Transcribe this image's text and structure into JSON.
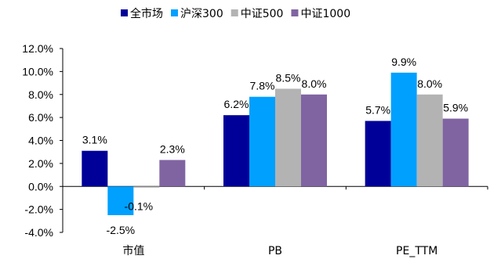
{
  "chart_data": {
    "type": "bar",
    "title": "",
    "xlabel": "",
    "ylabel": "",
    "categories": [
      "市值",
      "PB",
      "PE_TTM"
    ],
    "series": [
      {
        "name": "全市场",
        "color": "#000099",
        "values": [
          3.1,
          6.2,
          5.7
        ],
        "labels": [
          "3.1%",
          "6.2%",
          "5.7%"
        ]
      },
      {
        "name": "沪深300",
        "color": "#00a0ff",
        "values": [
          -2.5,
          7.8,
          9.9
        ],
        "labels": [
          "-2.5%",
          "7.8%",
          "9.9%"
        ]
      },
      {
        "name": "中证500",
        "color": "#b3b3b3",
        "values": [
          -0.1,
          8.5,
          8.0
        ],
        "labels": [
          "-0.1%",
          "8.5%",
          "8.0%"
        ]
      },
      {
        "name": "中证1000",
        "color": "#8064a2",
        "values": [
          2.3,
          8.0,
          5.9
        ],
        "labels": [
          "2.3%",
          "8.0%",
          "5.9%"
        ]
      }
    ],
    "ylim": [
      -4,
      12
    ],
    "yticks": [
      12,
      10,
      8,
      6,
      4,
      2,
      0,
      -2,
      -4
    ],
    "ytick_labels": [
      "12.0%",
      "10.0%",
      "8.0%",
      "6.0%",
      "4.0%",
      "2.0%",
      "0.0%",
      "-2.0%",
      "-4.0%"
    ],
    "grid": false,
    "legend_position": "top-center"
  }
}
